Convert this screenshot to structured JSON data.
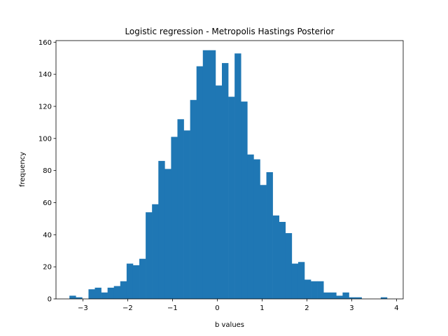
{
  "chart_data": {
    "type": "bar",
    "title": "Logistic regression - Metropolis Hastings Posterior",
    "xlabel": "b values",
    "ylabel": "frequency",
    "xlim": [
      -3.6,
      4.15
    ],
    "ylim": [
      0,
      161
    ],
    "xticks": [
      -3,
      -2,
      -1,
      0,
      1,
      2,
      3,
      4
    ],
    "yticks": [
      0,
      20,
      40,
      60,
      80,
      100,
      120,
      140,
      160
    ],
    "grid": false,
    "bar_color": "#1f77b4",
    "bin_start": -3.3,
    "bin_width": 0.1418,
    "values": [
      2,
      1,
      0,
      6,
      7,
      4,
      7,
      8,
      11,
      22,
      21,
      25,
      54,
      59,
      86,
      81,
      101,
      112,
      105,
      124,
      145,
      155,
      155,
      133,
      147,
      126,
      153,
      123,
      90,
      87,
      71,
      79,
      52,
      48,
      41,
      22,
      23,
      12,
      11,
      11,
      4,
      4,
      2,
      4,
      1,
      1,
      0,
      0,
      0,
      1
    ]
  }
}
